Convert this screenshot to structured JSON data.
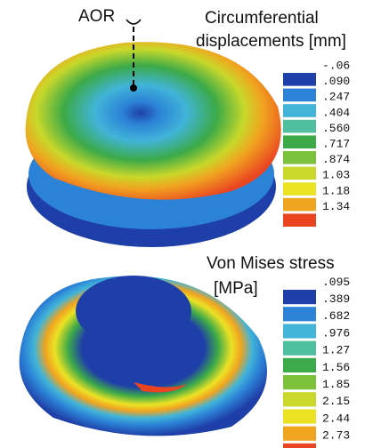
{
  "annotation": "AOR",
  "panels": [
    {
      "title_lines": [
        "Circumferential",
        "displacements [mm]"
      ],
      "legend": {
        "labels": [
          "-.06",
          ".090",
          ".247",
          ".404",
          ".560",
          ".717",
          ".874",
          "1.03",
          "1.18",
          "1.34"
        ],
        "colors": [
          "#1f3fa8",
          "#2b82d6",
          "#41b4d8",
          "#4fbfa0",
          "#3caa48",
          "#7cc23a",
          "#c9d82a",
          "#ece224",
          "#f0a420",
          "#ea4420"
        ]
      }
    },
    {
      "title_lines": [
        "Von Mises stress",
        "[MPa]"
      ],
      "legend": {
        "labels": [
          ".095",
          ".389",
          ".682",
          ".976",
          "1.27",
          "1.56",
          "1.85",
          "2.15",
          "2.44",
          "2.73"
        ],
        "colors": [
          "#1f3fa8",
          "#2b82d6",
          "#41b4d8",
          "#4fbfa0",
          "#3caa48",
          "#7cc23a",
          "#c9d82a",
          "#ece224",
          "#f0a420",
          "#ea4420"
        ]
      }
    }
  ]
}
